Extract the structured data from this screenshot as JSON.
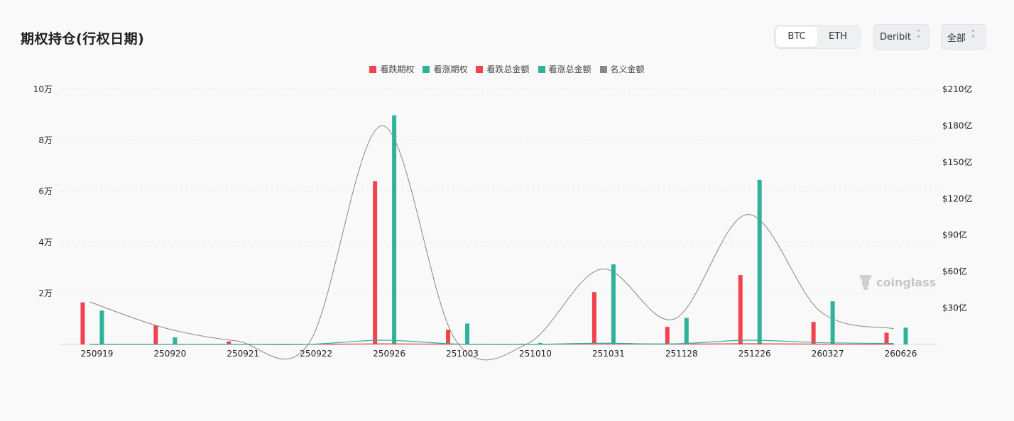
{
  "header": {
    "title": "期权持仓(行权日期)"
  },
  "asset_toggle": {
    "options": [
      "BTC",
      "ETH"
    ],
    "selected": "BTC"
  },
  "exchange_select": {
    "value": "Deribit"
  },
  "range_select": {
    "value": "全部"
  },
  "watermark": {
    "text": "coinglass"
  },
  "colors": {
    "put": "#f0434f",
    "call": "#2eb39a",
    "notional": "#888888"
  },
  "chart_data": {
    "type": "bar",
    "categories": [
      "250919",
      "250920",
      "250921",
      "250922",
      "250926",
      "251003",
      "251010",
      "251031",
      "251128",
      "251226",
      "260327",
      "260626"
    ],
    "series": [
      {
        "name": "看跌期权",
        "type": "bar",
        "axis": "left",
        "color": "#f0434f",
        "values": [
          16500,
          7500,
          1200,
          200,
          64000,
          5800,
          300,
          20500,
          6900,
          27200,
          8800,
          4600
        ]
      },
      {
        "name": "看涨期权",
        "type": "bar",
        "axis": "left",
        "color": "#2eb39a",
        "values": [
          13300,
          2800,
          300,
          300,
          89800,
          8200,
          600,
          31400,
          10400,
          64500,
          16900,
          6600
        ]
      },
      {
        "name": "看跌总金额",
        "type": "line",
        "axis": "right",
        "color": "#f0434f",
        "values": [
          0.2,
          0.1,
          0.1,
          0.1,
          0.5,
          0.2,
          0.1,
          0.4,
          0.3,
          0.6,
          0.3,
          0.2
        ]
      },
      {
        "name": "看涨总金额",
        "type": "line",
        "axis": "right",
        "color": "#2eb39a",
        "values": [
          0.1,
          0.1,
          0.1,
          0.1,
          3.5,
          0.4,
          0.1,
          1.0,
          0.5,
          3.5,
          1.5,
          0.8
        ]
      },
      {
        "name": "名义金额",
        "type": "line",
        "axis": "right",
        "color": "#888888",
        "values": [
          35,
          14,
          3,
          1,
          180,
          4,
          1,
          62,
          21,
          107,
          27,
          13
        ]
      }
    ],
    "y_left": {
      "ticks": [
        "2万",
        "4万",
        "6万",
        "8万",
        "10万"
      ],
      "range": [
        0,
        100000
      ]
    },
    "y_right": {
      "ticks": [
        "$30亿",
        "$60亿",
        "$90亿",
        "$120亿",
        "$150亿",
        "$180亿",
        "$210亿"
      ],
      "range": [
        0,
        210
      ]
    },
    "legend_position": "top-center",
    "grid": true
  }
}
